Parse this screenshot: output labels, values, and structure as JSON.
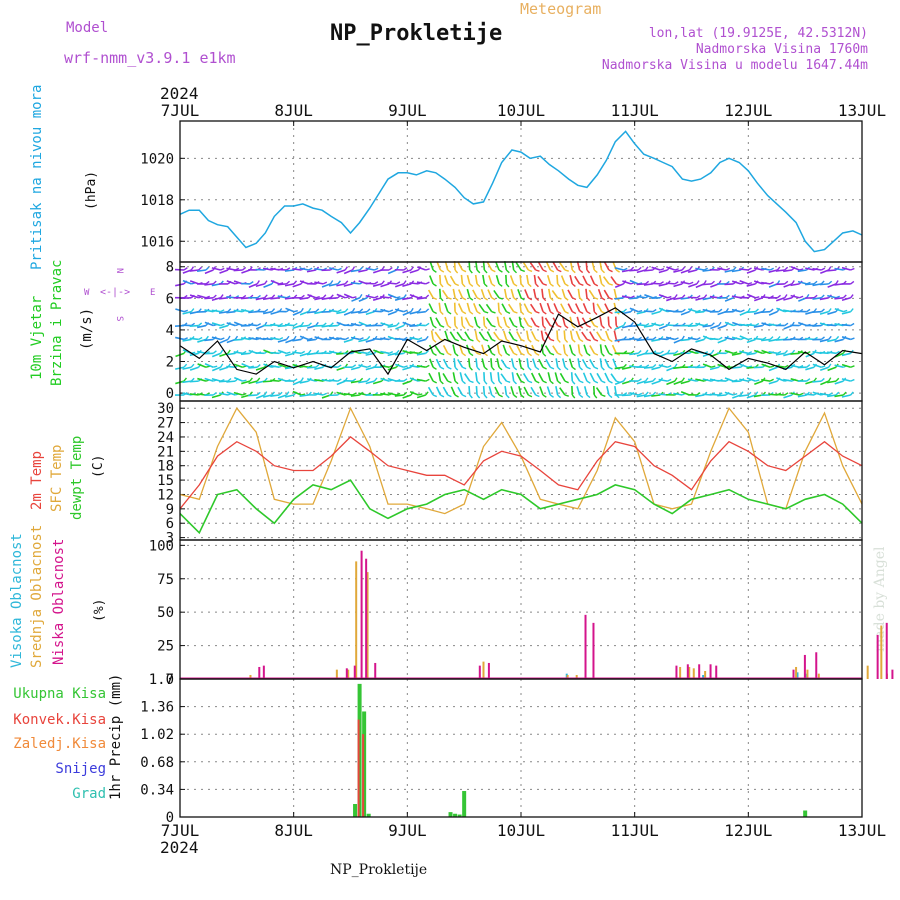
{
  "header": {
    "model_label": "Model",
    "model_name": "wrf-nmm_v3.9.1 e1km",
    "title": "NP_Prokletije",
    "meteogram_label": "Meteogram",
    "lonlat": "lon,lat (19.9125E, 42.5312N)",
    "altitude": "Nadmorska Visina 1760m",
    "model_altitude": "Nadmorska Visina u modelu 1647.44m",
    "year_top": "2024",
    "year_bottom": "2024",
    "footer_station": "NP_Prokletije",
    "credit": "made by Angel"
  },
  "colors": {
    "pressure": "#1fa7e0",
    "temp2m": "#e8443c",
    "sfc_temp": "#e0a83a",
    "dewpoint": "#2ec82a",
    "high_cloud": "#2fb7d9",
    "mid_cloud": "#e0a83a",
    "low_cloud": "#d4148c",
    "total_precip": "#35c535",
    "convective": "#e8443c",
    "frozen": "#f08a3a",
    "snow": "#3c3cdc",
    "hail": "#2fc0b0",
    "wind_left_label": "#22cc22",
    "wind_speed_line": "#000000",
    "wind_compass": "#b050d0",
    "header_purple": "#b050d0",
    "meteogram_orange": "#e8b060"
  },
  "chart_data": [
    {
      "type": "line",
      "name": "pressure-panel",
      "ylabel": "Pritisak na nivou mora",
      "unit": "(hPa)",
      "x_ticks": [
        "7JUL",
        "8JUL",
        "9JUL",
        "10JUL",
        "11JUL",
        "12JUL",
        "13JUL"
      ],
      "y_ticks": [
        1016,
        1018,
        1020
      ],
      "ylim": [
        1015,
        1021.8
      ],
      "grid": true,
      "series": [
        {
          "key": "pressure",
          "x": [
            0,
            0.08,
            0.17,
            0.25,
            0.33,
            0.42,
            0.5,
            0.58,
            0.67,
            0.75,
            0.83,
            0.92,
            1,
            1.08,
            1.17,
            1.25,
            1.33,
            1.42,
            1.5,
            1.58,
            1.67,
            1.75,
            1.83,
            1.92,
            2,
            2.08,
            2.17,
            2.25,
            2.33,
            2.42,
            2.5,
            2.58,
            2.67,
            2.75,
            2.83,
            2.92,
            3,
            3.08,
            3.17,
            3.25,
            3.33,
            3.42,
            3.5,
            3.58,
            3.67,
            3.75,
            3.83,
            3.92,
            4,
            4.08,
            4.17,
            4.25,
            4.33,
            4.42,
            4.5,
            4.58,
            4.67,
            4.75,
            4.83,
            4.92,
            5,
            5.08,
            5.17,
            5.25,
            5.33,
            5.42,
            5.5,
            5.58,
            5.67,
            5.75,
            5.83,
            5.92,
            6
          ],
          "values": [
            1017.3,
            1017.5,
            1017.5,
            1017.0,
            1016.8,
            1016.7,
            1016.2,
            1015.7,
            1015.9,
            1016.4,
            1017.2,
            1017.7,
            1017.7,
            1017.8,
            1017.6,
            1017.5,
            1017.2,
            1016.9,
            1016.4,
            1016.9,
            1017.6,
            1018.3,
            1019.0,
            1019.3,
            1019.3,
            1019.2,
            1019.4,
            1019.3,
            1019.0,
            1018.6,
            1018.1,
            1017.8,
            1017.9,
            1018.8,
            1019.8,
            1020.4,
            1020.3,
            1020.0,
            1020.1,
            1019.7,
            1019.4,
            1019.0,
            1018.7,
            1018.6,
            1019.2,
            1019.9,
            1020.8,
            1021.3,
            1020.7,
            1020.2,
            1020.0,
            1019.8,
            1019.6,
            1019.0,
            1018.9,
            1019.0,
            1019.3,
            1019.8,
            1020.0,
            1019.8,
            1019.4,
            1018.8,
            1018.2,
            1017.8,
            1017.4,
            1016.9,
            1016.0,
            1015.5,
            1015.6,
            1016.0,
            1016.4,
            1016.5,
            1016.3
          ]
        }
      ]
    },
    {
      "type": "line",
      "name": "wind-panel",
      "ylabel": [
        "10m Vjetar",
        "Brzina i Pravac"
      ],
      "unit": "(m/s)",
      "y_ticks": [
        0,
        2,
        4,
        6,
        8
      ],
      "ylim": [
        -0.5,
        8.3
      ],
      "compass": {
        "n": "N",
        "s": "S",
        "w": "W",
        "e": "E"
      },
      "grid": true,
      "series": [
        {
          "key": "wind_speed",
          "x": [
            0,
            0.17,
            0.33,
            0.5,
            0.67,
            0.83,
            1,
            1.17,
            1.33,
            1.5,
            1.67,
            1.83,
            2,
            2.17,
            2.33,
            2.5,
            2.67,
            2.83,
            3,
            3.17,
            3.33,
            3.5,
            3.67,
            3.83,
            4,
            4.17,
            4.33,
            4.5,
            4.67,
            4.83,
            5,
            5.17,
            5.33,
            5.5,
            5.67,
            5.83,
            6
          ],
          "values": [
            3.0,
            2.2,
            3.3,
            1.5,
            1.2,
            2.0,
            1.6,
            2.0,
            1.6,
            2.6,
            2.8,
            1.2,
            3.4,
            2.7,
            3.4,
            2.9,
            2.5,
            3.3,
            3.0,
            2.6,
            5.0,
            4.2,
            4.8,
            5.4,
            4.5,
            2.5,
            2.0,
            2.8,
            2.4,
            1.5,
            2.2,
            1.9,
            1.5,
            2.6,
            1.8,
            2.7,
            2.5
          ]
        }
      ]
    },
    {
      "type": "line",
      "name": "temperature-panel",
      "ylabel": [
        "2m Temp",
        "SFC Temp",
        "dewpt Temp"
      ],
      "unit": "(C)",
      "y_ticks": [
        3,
        6,
        9,
        12,
        15,
        18,
        21,
        24,
        27,
        30
      ],
      "ylim": [
        2.5,
        31.5
      ],
      "grid": true,
      "x": [
        0,
        0.17,
        0.33,
        0.5,
        0.67,
        0.83,
        1,
        1.17,
        1.33,
        1.5,
        1.67,
        1.83,
        2,
        2.17,
        2.33,
        2.5,
        2.67,
        2.83,
        3,
        3.17,
        3.33,
        3.5,
        3.67,
        3.83,
        4,
        4.17,
        4.33,
        4.5,
        4.67,
        4.83,
        5,
        5.17,
        5.33,
        5.5,
        5.67,
        5.83,
        6
      ],
      "series": [
        {
          "key": "temp2m",
          "values": [
            9,
            14,
            20,
            23,
            21,
            18,
            17,
            17,
            20,
            24,
            21,
            18,
            17,
            16,
            16,
            14,
            19,
            21,
            20,
            17,
            14,
            13,
            19,
            23,
            22,
            18,
            16,
            13,
            19,
            23,
            21,
            18,
            17,
            20,
            23,
            20,
            18
          ]
        },
        {
          "key": "sfc_temp",
          "values": [
            12,
            11,
            22,
            30,
            25,
            11,
            10,
            10,
            19,
            30,
            22,
            10,
            10,
            9,
            8,
            10,
            22,
            27,
            20,
            11,
            10,
            9,
            17,
            28,
            23,
            10,
            9,
            10,
            21,
            30,
            25,
            10,
            9,
            21,
            29,
            18,
            10
          ]
        },
        {
          "key": "dewpoint",
          "values": [
            8,
            4,
            12,
            13,
            9,
            6,
            11,
            14,
            13,
            15,
            9,
            7,
            9,
            10,
            12,
            13,
            11,
            13,
            12,
            9,
            10,
            11,
            12,
            14,
            13,
            10,
            8,
            11,
            12,
            13,
            11,
            10,
            9,
            11,
            12,
            10,
            6
          ]
        }
      ]
    },
    {
      "type": "bar",
      "name": "cloud-panel",
      "ylabel": [
        "Visoka Oblacnost",
        "Srednja Oblacnost",
        "Niska Oblacnost"
      ],
      "unit": "(%)",
      "y_ticks": [
        0,
        25,
        50,
        75,
        100
      ],
      "ylim": [
        0,
        104
      ],
      "grid": true,
      "series": [
        {
          "key": "high_cloud",
          "x": [
            3.42,
            4.62,
            5.45,
            5.52
          ],
          "values": [
            4,
            3,
            5,
            4
          ]
        },
        {
          "key": "mid_cloud",
          "x": [
            0.62,
            1.38,
            1.48,
            1.55,
            1.65,
            2.67,
            3.41,
            3.49,
            4.4,
            4.48,
            4.52,
            4.62,
            5.42,
            5.52,
            5.62,
            6.05,
            6.17,
            6.22
          ],
          "values": [
            3,
            7,
            7,
            88,
            80,
            13,
            3,
            3,
            9,
            9,
            8,
            6,
            9,
            7,
            4,
            10,
            40,
            4
          ]
        },
        {
          "key": "low_cloud",
          "x": [
            0.68,
            0.72,
            1.45,
            1.52,
            1.58,
            1.62,
            1.7,
            2.62,
            2.7,
            3.55,
            3.62,
            4.35,
            4.45,
            4.55,
            4.65,
            4.7,
            5.38,
            5.48,
            5.58,
            6.12,
            6.2,
            6.25
          ],
          "values": [
            9,
            10,
            8,
            10,
            96,
            90,
            12,
            10,
            12,
            48,
            42,
            10,
            11,
            11,
            11,
            10,
            7,
            18,
            20,
            33,
            42,
            7
          ]
        }
      ]
    },
    {
      "type": "bar",
      "name": "precip-panel",
      "ylabel": "1hr Precip (mm)",
      "y_ticks": [
        0,
        0.34,
        0.68,
        1.02,
        1.36,
        1.7
      ],
      "ylim": [
        0,
        1.7
      ],
      "legend": [
        "Ukupna Kisa",
        "Konvek.Kisa",
        "Zaledj.Kisa",
        "Snijeg",
        "Grad"
      ],
      "grid": true,
      "series": [
        {
          "key": "total_precip",
          "x": [
            1.54,
            1.58,
            1.62,
            1.66,
            2.38,
            2.42,
            2.46,
            2.5,
            5.5
          ],
          "values": [
            0.16,
            1.64,
            1.3,
            0.04,
            0.06,
            0.04,
            0.03,
            0.32,
            0.08
          ]
        },
        {
          "key": "convective",
          "x": [
            1.58,
            1.62
          ],
          "values": [
            1.2,
            1.02
          ]
        }
      ]
    }
  ]
}
